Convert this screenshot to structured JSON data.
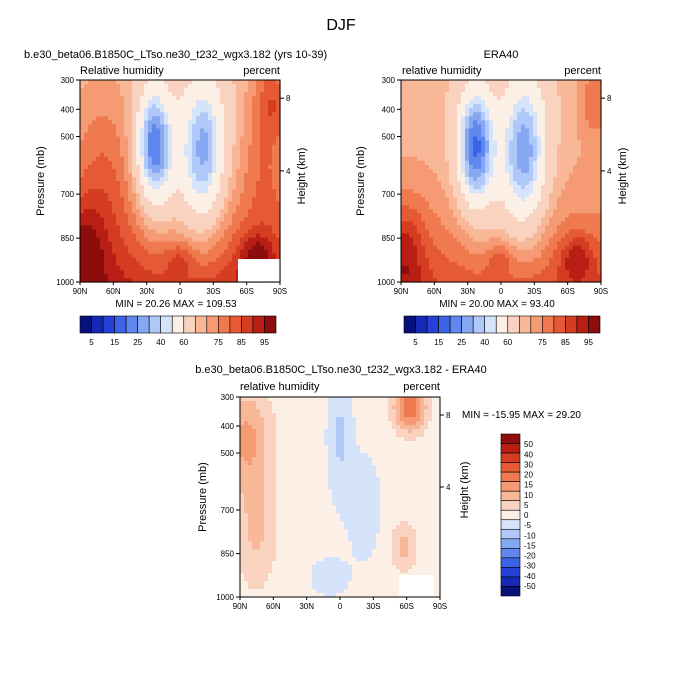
{
  "figure": {
    "title": "DJF"
  },
  "colors": {
    "rh_scale": [
      "#08117a",
      "#1528b8",
      "#2440d8",
      "#3c63e6",
      "#5f87ee",
      "#86a8f3",
      "#b0c8f7",
      "#d6e4fb",
      "#fbefe6",
      "#fad3c0",
      "#f8b898",
      "#f59a72",
      "#f07a50",
      "#e55a35",
      "#d43d22",
      "#b81e14",
      "#8c0d0c"
    ],
    "diff_scale": [
      "#08117a",
      "#1528b8",
      "#2440d8",
      "#3c63e6",
      "#5f87ee",
      "#86a8f3",
      "#b0c8f7",
      "#d6e4fb",
      "#fbefe6",
      "#fad3c0",
      "#f8b898",
      "#f59a72",
      "#f07a50",
      "#e55a35",
      "#d43d22",
      "#b81e14",
      "#8c0d0c"
    ]
  },
  "chart_data": [
    {
      "type": "heatmap",
      "title": "b.e30_beta06.B1850C_LTso.ne30_t232_wgx3.182 (yrs 10-39)",
      "left_label": "Relative humidity",
      "right_label": "percent",
      "xlabel": "",
      "ylabel": "Pressure (mb)",
      "ylabel_right": "Height (km)",
      "x_ticks": [
        "90N",
        "60N",
        "30N",
        "0",
        "30S",
        "60S",
        "90S"
      ],
      "y_ticks": [
        "300",
        "400",
        "500",
        "700",
        "850",
        "1000"
      ],
      "y_right_ticks": [
        "8",
        "4"
      ],
      "stats": "MIN =  20.26   MAX = 109.53",
      "field": "model"
    },
    {
      "type": "heatmap",
      "title": "ERA40",
      "left_label": "relative humidity",
      "right_label": "percent",
      "xlabel": "",
      "ylabel": "Pressure (mb)",
      "ylabel_right": "Height (km)",
      "x_ticks": [
        "90N",
        "60N",
        "30N",
        "0",
        "30S",
        "60S",
        "90S"
      ],
      "y_ticks": [
        "300",
        "400",
        "500",
        "700",
        "850",
        "1000"
      ],
      "y_right_ticks": [
        "8",
        "4"
      ],
      "stats": "MIN =  20.00   MAX =  93.40",
      "field": "obs"
    },
    {
      "type": "heatmap",
      "title": "b.e30_beta06.B1850C_LTso.ne30_t232_wgx3.182 - ERA40",
      "left_label": "relative humidity",
      "right_label": "percent",
      "xlabel": "",
      "ylabel": "Pressure (mb)",
      "ylabel_right": "Height (km)",
      "x_ticks": [
        "90N",
        "60N",
        "30N",
        "0",
        "30S",
        "60S",
        "90S"
      ],
      "y_ticks": [
        "300",
        "400",
        "500",
        "700",
        "850",
        "1000"
      ],
      "y_right_ticks": [
        "8",
        "4"
      ],
      "stats": "MIN = -15.95   MAX =  29.20",
      "field": "diff"
    }
  ],
  "colorbars": {
    "rh_labels": [
      "5",
      "15",
      "25",
      "40",
      "60",
      "75",
      "85",
      "95"
    ],
    "diff_labels": [
      "50",
      "40",
      "30",
      "20",
      "15",
      "10",
      "5",
      "0",
      "-5",
      "-10",
      "-15",
      "-20",
      "-30",
      "-40",
      "-50"
    ]
  }
}
